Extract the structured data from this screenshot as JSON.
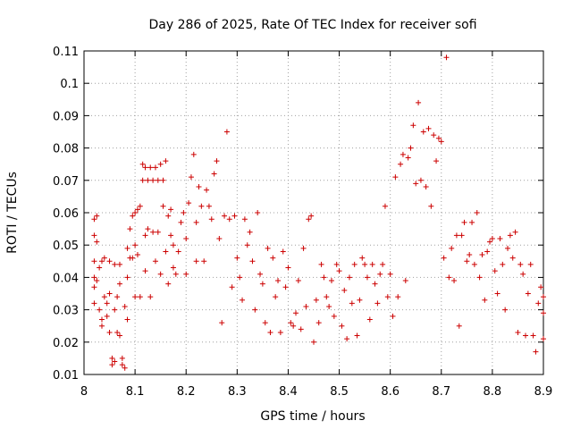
{
  "chart_data": {
    "type": "scatter",
    "title": "Day 286 of 2025, Rate Of TEC Index for receiver sofi",
    "xlabel": "GPS time / hours",
    "ylabel": "ROTI / TECUs",
    "xlim": [
      8,
      8.9
    ],
    "ylim": [
      0.01,
      0.11
    ],
    "xticks": [
      "8",
      "8.1",
      "8.2",
      "8.3",
      "8.4",
      "8.5",
      "8.6",
      "8.7",
      "8.8",
      "8.9"
    ],
    "yticks": [
      "0.01",
      "0.02",
      "0.03",
      "0.04",
      "0.05",
      "0.06",
      "0.07",
      "0.08",
      "0.09",
      "0.1",
      "0.11"
    ],
    "grid": true,
    "marker": "plus",
    "color": "#cc0000",
    "series": [
      {
        "name": "ROTI",
        "points": [
          [
            8.02,
            0.04
          ],
          [
            8.02,
            0.045
          ],
          [
            8.02,
            0.053
          ],
          [
            8.02,
            0.058
          ],
          [
            8.02,
            0.037
          ],
          [
            8.02,
            0.032
          ],
          [
            8.025,
            0.059
          ],
          [
            8.025,
            0.039
          ],
          [
            8.025,
            0.051
          ],
          [
            8.03,
            0.043
          ],
          [
            8.03,
            0.03
          ],
          [
            8.035,
            0.045
          ],
          [
            8.035,
            0.027
          ],
          [
            8.035,
            0.025
          ],
          [
            8.04,
            0.046
          ],
          [
            8.04,
            0.034
          ],
          [
            8.045,
            0.032
          ],
          [
            8.045,
            0.028
          ],
          [
            8.05,
            0.045
          ],
          [
            8.05,
            0.035
          ],
          [
            8.05,
            0.023
          ],
          [
            8.055,
            0.015
          ],
          [
            8.055,
            0.013
          ],
          [
            8.06,
            0.044
          ],
          [
            8.06,
            0.03
          ],
          [
            8.06,
            0.014
          ],
          [
            8.065,
            0.034
          ],
          [
            8.065,
            0.023
          ],
          [
            8.07,
            0.044
          ],
          [
            8.07,
            0.038
          ],
          [
            8.07,
            0.022
          ],
          [
            8.075,
            0.015
          ],
          [
            8.075,
            0.013
          ],
          [
            8.08,
            0.012
          ],
          [
            8.08,
            0.031
          ],
          [
            8.085,
            0.049
          ],
          [
            8.085,
            0.04
          ],
          [
            8.085,
            0.027
          ],
          [
            8.09,
            0.046
          ],
          [
            8.09,
            0.055
          ],
          [
            8.095,
            0.059
          ],
          [
            8.095,
            0.046
          ],
          [
            8.1,
            0.06
          ],
          [
            8.1,
            0.05
          ],
          [
            8.1,
            0.034
          ],
          [
            8.105,
            0.061
          ],
          [
            8.105,
            0.047
          ],
          [
            8.11,
            0.062
          ],
          [
            8.11,
            0.034
          ],
          [
            8.115,
            0.075
          ],
          [
            8.115,
            0.07
          ],
          [
            8.12,
            0.074
          ],
          [
            8.12,
            0.053
          ],
          [
            8.12,
            0.042
          ],
          [
            8.125,
            0.07
          ],
          [
            8.125,
            0.055
          ],
          [
            8.13,
            0.074
          ],
          [
            8.13,
            0.034
          ],
          [
            8.135,
            0.07
          ],
          [
            8.135,
            0.054
          ],
          [
            8.14,
            0.074
          ],
          [
            8.14,
            0.045
          ],
          [
            8.145,
            0.07
          ],
          [
            8.145,
            0.054
          ],
          [
            8.15,
            0.075
          ],
          [
            8.15,
            0.041
          ],
          [
            8.155,
            0.07
          ],
          [
            8.155,
            0.062
          ],
          [
            8.16,
            0.076
          ],
          [
            8.16,
            0.048
          ],
          [
            8.165,
            0.059
          ],
          [
            8.165,
            0.038
          ],
          [
            8.17,
            0.061
          ],
          [
            8.17,
            0.053
          ],
          [
            8.175,
            0.05
          ],
          [
            8.175,
            0.043
          ],
          [
            8.18,
            0.041
          ],
          [
            8.185,
            0.048
          ],
          [
            8.19,
            0.057
          ],
          [
            8.195,
            0.06
          ],
          [
            8.2,
            0.041
          ],
          [
            8.2,
            0.052
          ],
          [
            8.205,
            0.063
          ],
          [
            8.21,
            0.071
          ],
          [
            8.215,
            0.078
          ],
          [
            8.22,
            0.057
          ],
          [
            8.22,
            0.045
          ],
          [
            8.225,
            0.068
          ],
          [
            8.23,
            0.062
          ],
          [
            8.235,
            0.045
          ],
          [
            8.24,
            0.067
          ],
          [
            8.245,
            0.062
          ],
          [
            8.25,
            0.058
          ],
          [
            8.255,
            0.072
          ],
          [
            8.26,
            0.076
          ],
          [
            8.265,
            0.052
          ],
          [
            8.27,
            0.026
          ],
          [
            8.275,
            0.059
          ],
          [
            8.28,
            0.085
          ],
          [
            8.285,
            0.058
          ],
          [
            8.29,
            0.037
          ],
          [
            8.295,
            0.059
          ],
          [
            8.3,
            0.046
          ],
          [
            8.305,
            0.04
          ],
          [
            8.31,
            0.033
          ],
          [
            8.315,
            0.058
          ],
          [
            8.32,
            0.05
          ],
          [
            8.325,
            0.054
          ],
          [
            8.33,
            0.045
          ],
          [
            8.335,
            0.03
          ],
          [
            8.34,
            0.06
          ],
          [
            8.345,
            0.041
          ],
          [
            8.35,
            0.038
          ],
          [
            8.355,
            0.026
          ],
          [
            8.36,
            0.049
          ],
          [
            8.365,
            0.023
          ],
          [
            8.37,
            0.046
          ],
          [
            8.375,
            0.034
          ],
          [
            8.38,
            0.039
          ],
          [
            8.385,
            0.023
          ],
          [
            8.39,
            0.048
          ],
          [
            8.395,
            0.037
          ],
          [
            8.4,
            0.043
          ],
          [
            8.405,
            0.026
          ],
          [
            8.41,
            0.025
          ],
          [
            8.415,
            0.029
          ],
          [
            8.42,
            0.039
          ],
          [
            8.425,
            0.024
          ],
          [
            8.43,
            0.049
          ],
          [
            8.435,
            0.031
          ],
          [
            8.44,
            0.058
          ],
          [
            8.445,
            0.059
          ],
          [
            8.45,
            0.02
          ],
          [
            8.455,
            0.033
          ],
          [
            8.46,
            0.026
          ],
          [
            8.465,
            0.044
          ],
          [
            8.47,
            0.04
          ],
          [
            8.475,
            0.034
          ],
          [
            8.48,
            0.031
          ],
          [
            8.485,
            0.039
          ],
          [
            8.49,
            0.028
          ],
          [
            8.495,
            0.044
          ],
          [
            8.5,
            0.042
          ],
          [
            8.505,
            0.025
          ],
          [
            8.51,
            0.036
          ],
          [
            8.515,
            0.021
          ],
          [
            8.52,
            0.04
          ],
          [
            8.525,
            0.032
          ],
          [
            8.53,
            0.044
          ],
          [
            8.535,
            0.022
          ],
          [
            8.54,
            0.033
          ],
          [
            8.545,
            0.046
          ],
          [
            8.55,
            0.044
          ],
          [
            8.555,
            0.04
          ],
          [
            8.56,
            0.027
          ],
          [
            8.565,
            0.044
          ],
          [
            8.57,
            0.038
          ],
          [
            8.575,
            0.032
          ],
          [
            8.58,
            0.041
          ],
          [
            8.585,
            0.044
          ],
          [
            8.59,
            0.062
          ],
          [
            8.595,
            0.034
          ],
          [
            8.6,
            0.041
          ],
          [
            8.605,
            0.028
          ],
          [
            8.61,
            0.071
          ],
          [
            8.615,
            0.034
          ],
          [
            8.62,
            0.075
          ],
          [
            8.625,
            0.078
          ],
          [
            8.63,
            0.039
          ],
          [
            8.635,
            0.077
          ],
          [
            8.64,
            0.08
          ],
          [
            8.645,
            0.087
          ],
          [
            8.65,
            0.069
          ],
          [
            8.655,
            0.094
          ],
          [
            8.66,
            0.07
          ],
          [
            8.665,
            0.085
          ],
          [
            8.67,
            0.068
          ],
          [
            8.675,
            0.086
          ],
          [
            8.68,
            0.062
          ],
          [
            8.685,
            0.084
          ],
          [
            8.69,
            0.076
          ],
          [
            8.695,
            0.083
          ],
          [
            8.7,
            0.082
          ],
          [
            8.705,
            0.046
          ],
          [
            8.71,
            0.108
          ],
          [
            8.715,
            0.04
          ],
          [
            8.72,
            0.049
          ],
          [
            8.725,
            0.039
          ],
          [
            8.73,
            0.053
          ],
          [
            8.735,
            0.025
          ],
          [
            8.74,
            0.053
          ],
          [
            8.745,
            0.057
          ],
          [
            8.75,
            0.045
          ],
          [
            8.755,
            0.047
          ],
          [
            8.76,
            0.057
          ],
          [
            8.765,
            0.044
          ],
          [
            8.77,
            0.06
          ],
          [
            8.775,
            0.04
          ],
          [
            8.78,
            0.047
          ],
          [
            8.785,
            0.033
          ],
          [
            8.79,
            0.048
          ],
          [
            8.795,
            0.051
          ],
          [
            8.8,
            0.052
          ],
          [
            8.805,
            0.042
          ],
          [
            8.81,
            0.035
          ],
          [
            8.815,
            0.052
          ],
          [
            8.82,
            0.044
          ],
          [
            8.825,
            0.03
          ],
          [
            8.83,
            0.049
          ],
          [
            8.835,
            0.053
          ],
          [
            8.84,
            0.046
          ],
          [
            8.845,
            0.054
          ],
          [
            8.85,
            0.023
          ],
          [
            8.855,
            0.044
          ],
          [
            8.86,
            0.041
          ],
          [
            8.865,
            0.022
          ],
          [
            8.87,
            0.035
          ],
          [
            8.875,
            0.044
          ],
          [
            8.88,
            0.022
          ],
          [
            8.885,
            0.017
          ],
          [
            8.89,
            0.032
          ],
          [
            8.895,
            0.037
          ],
          [
            8.9,
            0.029
          ],
          [
            8.9,
            0.034
          ],
          [
            8.9,
            0.021
          ]
        ]
      }
    ]
  }
}
